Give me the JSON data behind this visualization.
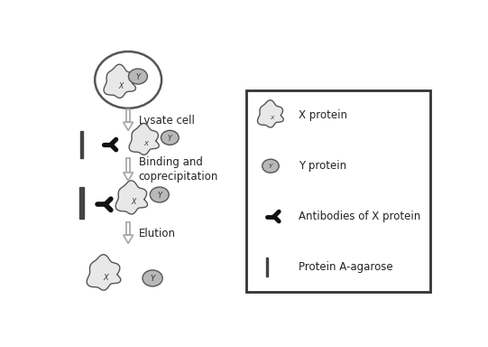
{
  "bg_color": "#ffffff",
  "fig_width": 5.41,
  "fig_height": 3.84,
  "dpi": 100,
  "text_color": "#222222",
  "x_protein_face": "#e8e8e8",
  "x_protein_edge": "#555555",
  "y_protein_face": "#b8b8b8",
  "y_protein_edge": "#555555",
  "antibody_color": "#111111",
  "agarose_color": "#444444",
  "arrow_color": "#aaaaaa",
  "cell_edge": "#555555",
  "label_lysate": "Lysate cell",
  "label_binding": "Binding and\ncoprecipitation",
  "label_elution": "Elution",
  "legend_items": [
    "X protein",
    "Y protein",
    "Antibodies of X protein",
    "Protein A-agarose"
  ]
}
